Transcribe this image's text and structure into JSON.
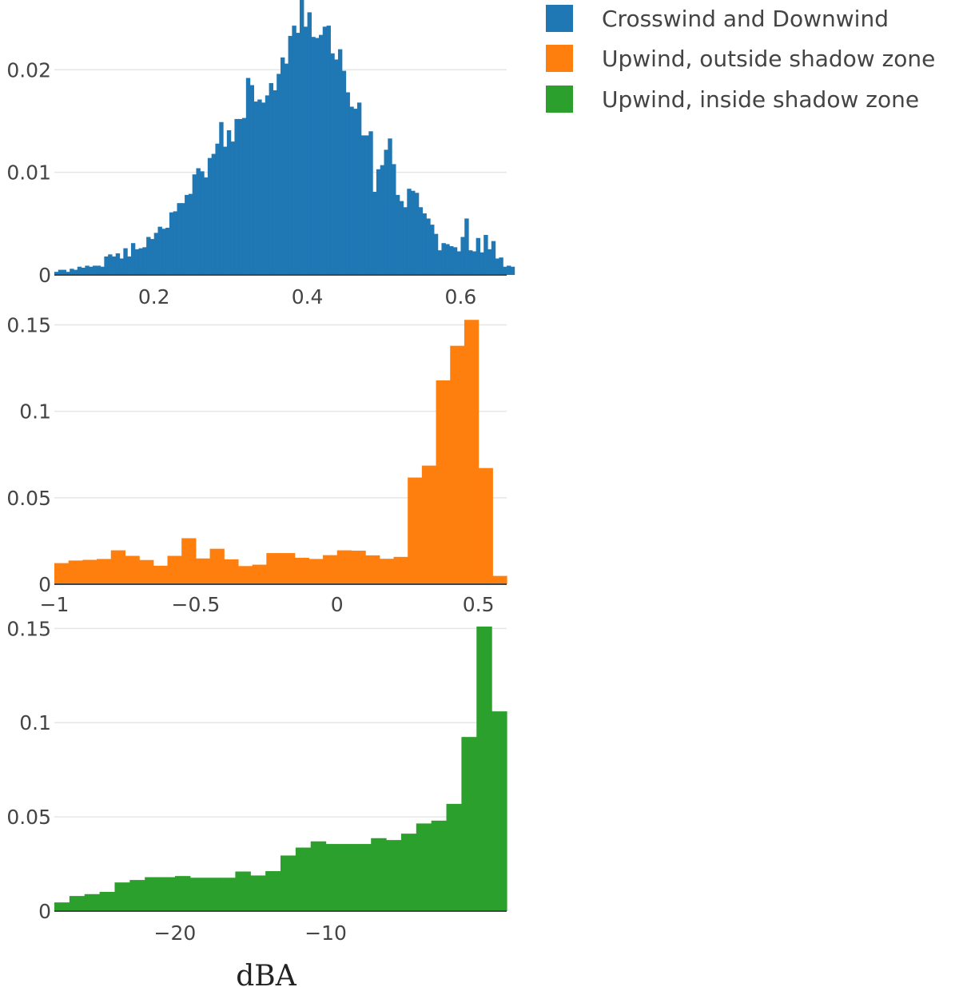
{
  "chart_data": [
    {
      "type": "bar",
      "histogram": true,
      "series": [
        {
          "name": "Crosswind and Downwind",
          "color": "#1f77b4",
          "bin_start": 0.07,
          "bin_width": 0.005,
          "values": [
            0.0003,
            0.0005,
            0.0005,
            0.0003,
            0.0006,
            0.0005,
            0.0008,
            0.0007,
            0.0009,
            0.0008,
            0.0009,
            0.0009,
            0.0008,
            0.0018,
            0.002,
            0.0018,
            0.0021,
            0.0016,
            0.0026,
            0.0018,
            0.0031,
            0.0025,
            0.0026,
            0.0027,
            0.0037,
            0.0035,
            0.0041,
            0.0047,
            0.0045,
            0.0046,
            0.0061,
            0.0062,
            0.007,
            0.007,
            0.0078,
            0.0079,
            0.0098,
            0.0104,
            0.0101,
            0.0095,
            0.0114,
            0.0118,
            0.0128,
            0.0149,
            0.0125,
            0.0141,
            0.013,
            0.0152,
            0.0152,
            0.0153,
            0.0192,
            0.0185,
            0.0169,
            0.0171,
            0.0168,
            0.0175,
            0.0187,
            0.018,
            0.0196,
            0.0212,
            0.0206,
            0.0233,
            0.0243,
            0.0236,
            0.0275,
            0.0242,
            0.0256,
            0.0232,
            0.0231,
            0.0234,
            0.0242,
            0.0243,
            0.0216,
            0.021,
            0.022,
            0.0199,
            0.0178,
            0.0164,
            0.0162,
            0.0168,
            0.0136,
            0.0136,
            0.014,
            0.0081,
            0.0103,
            0.0107,
            0.0122,
            0.0133,
            0.0108,
            0.0078,
            0.0072,
            0.0066,
            0.0084,
            0.0082,
            0.008,
            0.0066,
            0.006,
            0.0055,
            0.0049,
            0.004,
            0.0024,
            0.0031,
            0.003,
            0.0028,
            0.0027,
            0.0023,
            0.0037,
            0.0055,
            0.0024,
            0.0023,
            0.0036,
            0.0022,
            0.0039,
            0.0025,
            0.0033,
            0.0016,
            0.0017,
            0.0008,
            0.0009,
            0.0008
          ]
        }
      ],
      "xlim": [
        0.07,
        0.66
      ],
      "ylim": [
        0,
        0.0268
      ],
      "xticks": [
        {
          "value": 0.2,
          "label": "0.2"
        },
        {
          "value": 0.4,
          "label": "0.4"
        },
        {
          "value": 0.6,
          "label": "0.6"
        }
      ],
      "yticks": [
        {
          "value": 0,
          "label": "0"
        },
        {
          "value": 0.01,
          "label": "0.01"
        },
        {
          "value": 0.02,
          "label": "0.02"
        }
      ],
      "grid": true
    },
    {
      "type": "bar",
      "histogram": true,
      "series": [
        {
          "name": "Upwind, outside shadow zone",
          "color": "#ff7f0e",
          "bin_start": -1.0,
          "bin_width": 0.05,
          "values": [
            0.0122,
            0.0137,
            0.0141,
            0.0146,
            0.0196,
            0.0164,
            0.014,
            0.0107,
            0.0164,
            0.0266,
            0.0149,
            0.0205,
            0.0144,
            0.0105,
            0.0113,
            0.018,
            0.018,
            0.0153,
            0.0146,
            0.0168,
            0.0196,
            0.0194,
            0.0167,
            0.0147,
            0.0158,
            0.0617,
            0.0686,
            0.1179,
            0.1379,
            0.1529,
            0.0672,
            0.0048
          ]
        }
      ],
      "xlim": [
        -1.0,
        0.6
      ],
      "ylim": [
        0,
        0.153
      ],
      "xticks": [
        {
          "value": -1,
          "label": "−1"
        },
        {
          "value": -0.5,
          "label": "−0.5"
        },
        {
          "value": 0,
          "label": "0"
        },
        {
          "value": 0.5,
          "label": "0.5"
        }
      ],
      "yticks": [
        {
          "value": 0,
          "label": "0"
        },
        {
          "value": 0.05,
          "label": "0.05"
        },
        {
          "value": 0.1,
          "label": "0.1"
        },
        {
          "value": 0.15,
          "label": "0.15"
        }
      ],
      "grid": true
    },
    {
      "type": "bar",
      "histogram": true,
      "series": [
        {
          "name": "Upwind, inside shadow zone",
          "color": "#2ca02c",
          "bin_start": -28.0,
          "bin_width": 1.0,
          "values": [
            0.0046,
            0.008,
            0.009,
            0.0102,
            0.0152,
            0.0165,
            0.018,
            0.018,
            0.0186,
            0.0177,
            0.0177,
            0.0177,
            0.021,
            0.0189,
            0.0212,
            0.0295,
            0.0337,
            0.037,
            0.0356,
            0.0356,
            0.0356,
            0.0387,
            0.0377,
            0.0411,
            0.0465,
            0.048,
            0.0569,
            0.0924,
            0.151,
            0.106
          ]
        }
      ],
      "xlim": [
        -28.0,
        2.0
      ],
      "ylim": [
        0,
        0.151
      ],
      "xticks": [
        {
          "value": -20,
          "label": "−20"
        },
        {
          "value": -10,
          "label": "−10"
        }
      ],
      "yticks": [
        {
          "value": 0,
          "label": "0"
        },
        {
          "value": 0.05,
          "label": "0.05"
        },
        {
          "value": 0.1,
          "label": "0.1"
        },
        {
          "value": 0.15,
          "label": "0.15"
        }
      ],
      "grid": true,
      "xlabel": "dBA"
    }
  ],
  "legend": {
    "position": "top-right",
    "items": [
      {
        "label": "Crosswind and Downwind",
        "color": "#1f77b4"
      },
      {
        "label": "Upwind, outside shadow zone",
        "color": "#ff7f0e"
      },
      {
        "label": "Upwind, inside shadow zone",
        "color": "#2ca02c"
      }
    ]
  }
}
